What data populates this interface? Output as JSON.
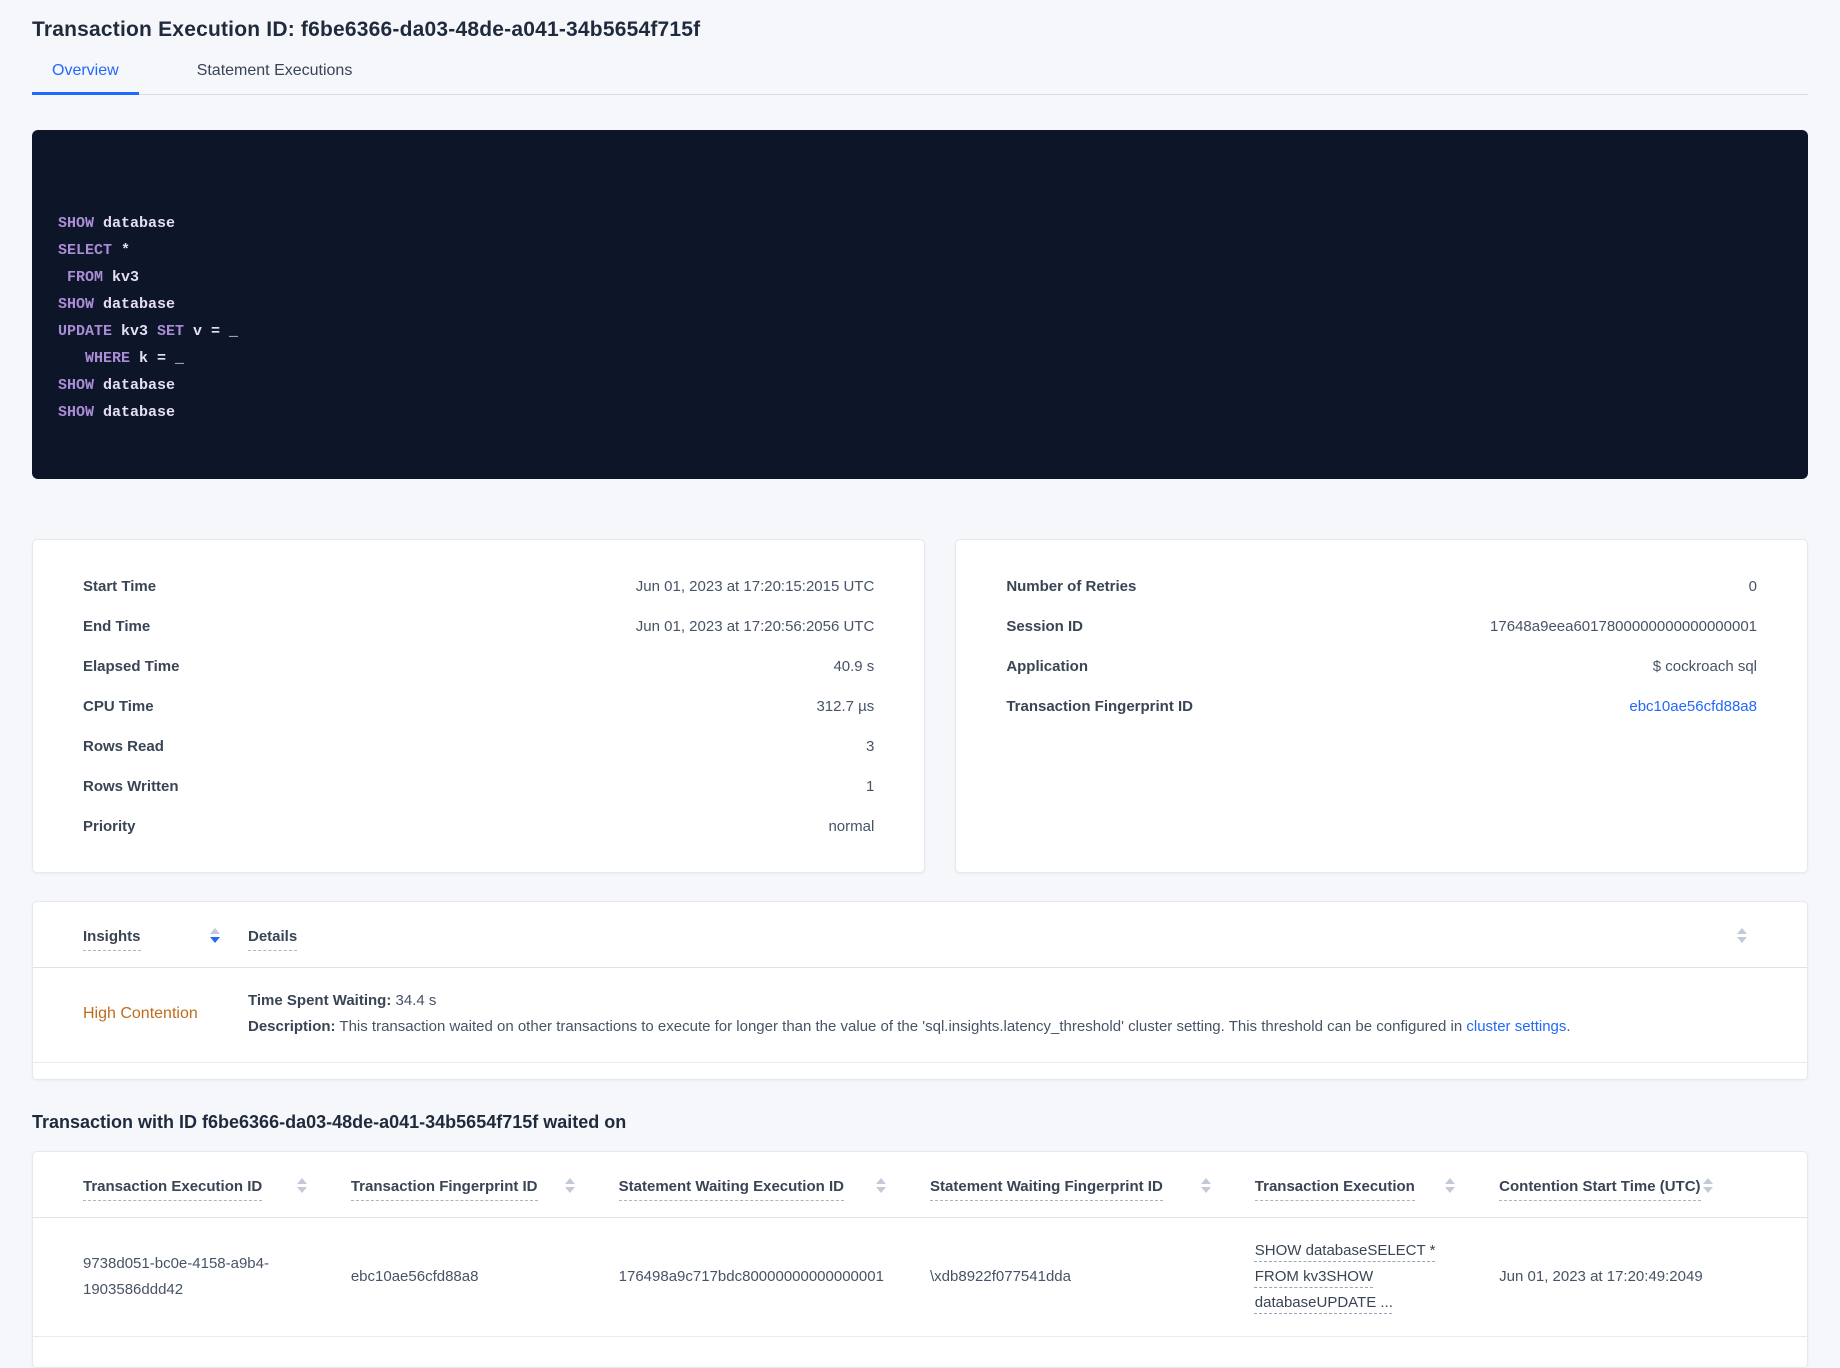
{
  "header": {
    "title": "Transaction Execution ID: f6be6366-da03-48de-a041-34b5654f715f"
  },
  "tabs": [
    {
      "label": "Overview",
      "active": true
    },
    {
      "label": "Statement Executions",
      "active": false
    }
  ],
  "code": {
    "lines": [
      [
        {
          "c": "kw",
          "s": "SHOW"
        },
        {
          "c": "pl",
          "s": " database"
        }
      ],
      [
        {
          "c": "kw",
          "s": "SELECT"
        },
        {
          "c": "pl",
          "s": " *"
        }
      ],
      [
        {
          "c": "kw",
          "s": " FROM"
        },
        {
          "c": "pl",
          "s": " kv3"
        }
      ],
      [
        {
          "c": "kw",
          "s": "SHOW"
        },
        {
          "c": "pl",
          "s": " database"
        }
      ],
      [
        {
          "c": "kw",
          "s": "UPDATE"
        },
        {
          "c": "pl",
          "s": " kv3 "
        },
        {
          "c": "kw",
          "s": "SET"
        },
        {
          "c": "pl",
          "s": " v = _"
        }
      ],
      [
        {
          "c": "kw",
          "s": "   WHERE"
        },
        {
          "c": "pl",
          "s": " k = _"
        }
      ],
      [
        {
          "c": "kw",
          "s": "SHOW"
        },
        {
          "c": "pl",
          "s": " database"
        }
      ],
      [
        {
          "c": "kw",
          "s": "SHOW"
        },
        {
          "c": "pl",
          "s": " database"
        }
      ]
    ]
  },
  "summary_left": {
    "rows": [
      {
        "label": "Start Time",
        "value": "Jun 01, 2023 at 17:20:15:2015 UTC"
      },
      {
        "label": "End Time",
        "value": "Jun 01, 2023 at 17:20:56:2056 UTC"
      },
      {
        "label": "Elapsed Time",
        "value": "40.9 s"
      },
      {
        "label": "CPU Time",
        "value": "312.7 µs"
      },
      {
        "label": "Rows Read",
        "value": "3"
      },
      {
        "label": "Rows Written",
        "value": "1"
      },
      {
        "label": "Priority",
        "value": "normal"
      }
    ]
  },
  "summary_right": {
    "rows": [
      {
        "label": "Number of Retries",
        "value": "0"
      },
      {
        "label": "Session ID",
        "value": "17648a9eea6017800000000000000001"
      },
      {
        "label": "Application",
        "value": "$ cockroach sql"
      },
      {
        "label": "Transaction Fingerprint ID",
        "value": "ebc10ae56cfd88a8",
        "link": true
      }
    ]
  },
  "insights": {
    "col_insights": "Insights",
    "col_details": "Details",
    "row": {
      "insight": "High Contention",
      "waiting_label": "Time Spent Waiting:",
      "waiting_value": " 34.4 s",
      "description_label": "Description:",
      "description_text": " This transaction waited on other transactions to execute for longer than the value of the 'sql.insights.latency_threshold' cluster setting. This threshold can be configured in ",
      "description_link": "cluster settings",
      "description_suffix": "."
    }
  },
  "waited_on": {
    "heading": "Transaction with ID f6be6366-da03-48de-a041-34b5654f715f waited on",
    "columns": [
      "Transaction Execution ID",
      "Transaction Fingerprint ID",
      "Statement Waiting Execution ID",
      "Statement Waiting Fingerprint ID",
      "Transaction Execution",
      "Contention Start Time (UTC)"
    ],
    "rows": [
      [
        "9738d051-bc0e-4158-a9b4-1903586ddd42",
        "ebc10ae56cfd88a8",
        "176498a9c717bdc80000000000000001",
        "\\xdb8922f077541dda",
        "SHOW databaseSELECT * FROM kv3SHOW databaseUPDATE ...",
        "Jun 01, 2023 at 17:20:49:2049"
      ]
    ]
  },
  "colors": {
    "accent_blue": "#2268fb",
    "insight_orange": "#bf6c1f",
    "code_background": "#0c1628",
    "code_keyword": "#aa8cd7",
    "code_plain": "#e6dff4",
    "page_background": "#f5f7fa"
  }
}
